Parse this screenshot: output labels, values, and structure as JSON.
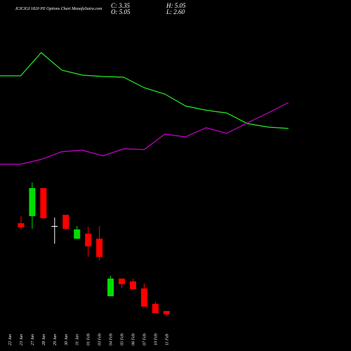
{
  "chart_data": {
    "type": "candlestick",
    "title": "ICICIGI 1820 PE Options Chart MunafaSutra.com",
    "info": [
      "C: 3.35",
      "H: 5.05",
      "O: 5.05",
      "L: 2.60"
    ],
    "categories": [
      "22 Jan",
      "23 Jan",
      "27 Jan",
      "28 Jan",
      "29 Jan",
      "30 Jan",
      "31 Jan",
      "01 Feb",
      "03 Feb",
      "04 Feb",
      "05 Feb",
      "06 Feb",
      "07 Feb",
      "10 Feb",
      "11 Feb"
    ],
    "open": [
      null,
      48.8,
      52.3,
      66.3,
      47.4,
      53.0,
      41.1,
      43.6,
      41.1,
      12.4,
      21.2,
      19.8,
      16.3,
      8.6,
      5.05
    ],
    "high": [
      null,
      52.3,
      69.1,
      66.3,
      51.6,
      53.0,
      47.4,
      47.0,
      47.4,
      22.6,
      21.2,
      21.2,
      18.7,
      9.6,
      5.05
    ],
    "low": [
      null,
      45.7,
      46.0,
      50.9,
      38.6,
      45.7,
      40.8,
      32.0,
      30.3,
      12.4,
      16.6,
      15.9,
      7.2,
      4.0,
      2.6
    ],
    "close": [
      null,
      46.7,
      66.3,
      51.3,
      47.4,
      46.0,
      45.7,
      37.3,
      32.0,
      21.2,
      18.4,
      15.9,
      7.2,
      4.0,
      3.35
    ],
    "up_color": "#00dd00",
    "down_color": "#ff0000",
    "flat_color": "#ffffff",
    "ylim": [
      0,
      75
    ],
    "y2lim": [
      0,
      100
    ],
    "series": [
      {
        "color": "#22ee22",
        "axis": "y2",
        "values": [
          76.8,
          76.8,
          90,
          80,
          77.2,
          76.4,
          76,
          70,
          66.4,
          59.6,
          57.2,
          55.6,
          49.6,
          47.6,
          46.8
        ]
      },
      {
        "color": "#cc00cc",
        "axis": "y2",
        "values": [
          26.4,
          26.4,
          29.2,
          33.6,
          34.4,
          31.2,
          35.2,
          34.8,
          43.6,
          42,
          47.2,
          44,
          50,
          55.6,
          61.6
        ]
      }
    ]
  }
}
